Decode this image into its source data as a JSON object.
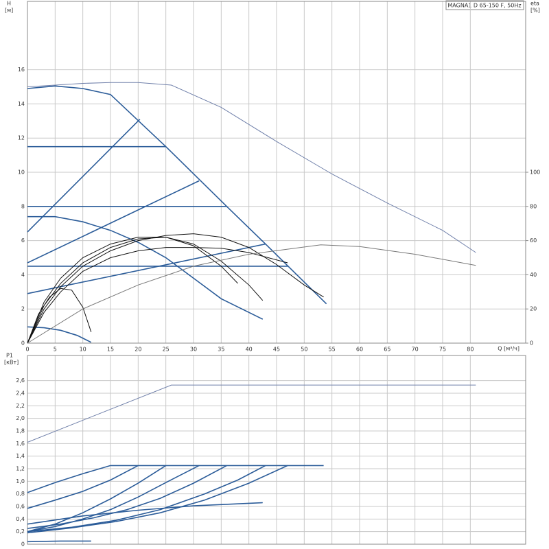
{
  "chart_data": [
    {
      "type": "line",
      "title": "MAGNA1 D 65-150 F, 50Hz",
      "y_label": "H",
      "y_unit": "[м]",
      "y2_label": "eta",
      "y2_unit": "[%]",
      "x_label": "Q [м³/ч]",
      "xlim": [
        0,
        90
      ],
      "xticks": [
        0,
        5,
        10,
        15,
        20,
        25,
        30,
        35,
        40,
        45,
        50,
        55,
        60,
        65,
        70,
        75,
        80
      ],
      "ylim": [
        0,
        20
      ],
      "yticks": [
        0,
        2,
        4,
        6,
        8,
        10,
        12,
        14,
        16
      ],
      "y2lim": [
        0,
        200
      ],
      "y2ticks": [
        0,
        20,
        40,
        60,
        80,
        100
      ],
      "grid": true,
      "series": [
        {
          "color": "#7080aa",
          "x": [
            0,
            5,
            10,
            15,
            20,
            26,
            35,
            45,
            55,
            65,
            75,
            81
          ],
          "values": [
            15,
            15.1,
            15.2,
            15.25,
            15.25,
            15.1,
            13.8,
            11.8,
            9.9,
            8.2,
            6.6,
            5.3
          ]
        },
        {
          "color": "#2b5c99",
          "x": [
            0,
            5,
            10,
            15,
            25,
            36,
            43,
            54
          ],
          "values": [
            14.9,
            15.05,
            14.9,
            14.55,
            11.5,
            8,
            5.8,
            2.3
          ]
        },
        {
          "color": "#2b5c99",
          "x": [
            0,
            25
          ],
          "values": [
            11.5,
            11.5
          ]
        },
        {
          "color": "#2b5c99",
          "x": [
            0,
            36
          ],
          "values": [
            8,
            8
          ]
        },
        {
          "color": "#2b5c99",
          "x": [
            0,
            47
          ],
          "values": [
            4.5,
            4.5
          ]
        },
        {
          "color": "#2b5c99",
          "x": [
            0,
            20.3
          ],
          "values": [
            6.5,
            13.1
          ]
        },
        {
          "color": "#2b5c99",
          "x": [
            0,
            31
          ],
          "values": [
            4.7,
            9.5
          ]
        },
        {
          "color": "#2b5c99",
          "x": [
            0,
            43
          ],
          "values": [
            2.9,
            5.8
          ]
        },
        {
          "color": "#2b5c99",
          "x": [
            0,
            5,
            10,
            15,
            20,
            25,
            30,
            35,
            42.5
          ],
          "values": [
            7.4,
            7.4,
            7.1,
            6.6,
            5.9,
            5,
            3.8,
            2.6,
            1.4
          ]
        },
        {
          "color": "#2b5c99",
          "x": [
            0,
            3,
            6,
            9,
            11.5
          ],
          "values": [
            0.95,
            0.9,
            0.75,
            0.45,
            0.05
          ]
        },
        {
          "color": "#111111",
          "axis": "y2",
          "x": [
            0,
            3,
            6,
            10,
            15,
            20,
            25,
            30,
            35,
            40,
            45,
            50,
            53.5
          ],
          "values": [
            0,
            20,
            33,
            45,
            54,
            60,
            63,
            64,
            62,
            56,
            46,
            34,
            27
          ]
        },
        {
          "color": "#111111",
          "axis": "y2",
          "x": [
            0,
            3,
            6,
            10,
            15,
            20,
            25,
            30,
            35,
            40,
            42.5
          ],
          "values": [
            0,
            22,
            35,
            47,
            56,
            61,
            62,
            58,
            48,
            34,
            25
          ]
        },
        {
          "color": "#111111",
          "axis": "y2",
          "x": [
            0,
            3,
            6,
            10,
            15,
            20,
            25,
            30,
            35,
            38
          ],
          "values": [
            0,
            24,
            38,
            50,
            58,
            62,
            62,
            57,
            45,
            35
          ]
        },
        {
          "color": "#111111",
          "axis": "y2",
          "x": [
            0,
            3,
            6,
            10,
            15,
            20,
            25,
            30,
            35,
            40,
            47
          ],
          "values": [
            0,
            18,
            30,
            42,
            50,
            54,
            56,
            56,
            55.5,
            53,
            47
          ]
        },
        {
          "color": "#111111",
          "axis": "y2",
          "x": [
            0,
            2,
            4,
            6,
            8,
            10,
            11.5
          ],
          "values": [
            0,
            17,
            27,
            32,
            31,
            21,
            6.5
          ]
        },
        {
          "color": "#777777",
          "axis": "y2",
          "x": [
            0,
            10,
            20,
            30,
            40,
            53,
            60,
            70,
            81
          ],
          "values": [
            0,
            20,
            34,
            45,
            52,
            57.5,
            56.5,
            52,
            45.5
          ]
        }
      ]
    },
    {
      "type": "line",
      "y_label": "P1",
      "y_unit": "[кВт]",
      "xlim": [
        0,
        90
      ],
      "xticks": [
        0,
        5,
        10,
        15,
        20,
        25,
        30,
        35,
        40,
        45,
        50,
        55,
        60,
        65,
        70,
        75,
        80
      ],
      "ylim": [
        0,
        3
      ],
      "yticks": [
        0,
        {
          "value": 0.2,
          "label": "0,2"
        },
        {
          "value": 0.4,
          "label": "0,4"
        },
        {
          "value": 0.6,
          "label": "0,6"
        },
        {
          "value": 0.8,
          "label": "0,8"
        },
        {
          "value": 1.0,
          "label": "1,0"
        },
        {
          "value": 1.2,
          "label": "1,2"
        },
        {
          "value": 1.4,
          "label": "1,4"
        },
        {
          "value": 1.6,
          "label": "1,6"
        },
        {
          "value": 1.8,
          "label": "1,8"
        },
        {
          "value": 2.0,
          "label": "2,0"
        },
        {
          "value": 2.2,
          "label": "2,2"
        },
        {
          "value": 2.4,
          "label": "2,4"
        },
        {
          "value": 2.6,
          "label": "2,6"
        }
      ],
      "grid": true,
      "series": [
        {
          "color": "#7080aa",
          "x": [
            0,
            26,
            81
          ],
          "values": [
            1.62,
            2.53,
            2.53
          ]
        },
        {
          "color": "#2b5c99",
          "x": [
            15,
            53.5
          ],
          "values": [
            1.25,
            1.25
          ]
        },
        {
          "color": "#2b5c99",
          "x": [
            0,
            5,
            10,
            15
          ],
          "values": [
            0.82,
            0.98,
            1.12,
            1.25
          ]
        },
        {
          "color": "#2b5c99",
          "x": [
            0,
            5,
            10,
            15,
            20
          ],
          "values": [
            0.57,
            0.7,
            0.84,
            1.02,
            1.25
          ]
        },
        {
          "color": "#2b5c99",
          "x": [
            0,
            5,
            10,
            15,
            20,
            25
          ],
          "values": [
            0.2,
            0.32,
            0.5,
            0.72,
            0.97,
            1.25
          ]
        },
        {
          "color": "#2b5c99",
          "x": [
            0,
            5,
            10,
            15,
            20,
            25,
            31
          ],
          "values": [
            0.2,
            0.28,
            0.4,
            0.55,
            0.75,
            0.98,
            1.25
          ]
        },
        {
          "color": "#2b5c99",
          "x": [
            0,
            6,
            12,
            18,
            24,
            30,
            36
          ],
          "values": [
            0.25,
            0.32,
            0.42,
            0.55,
            0.73,
            0.97,
            1.25
          ]
        },
        {
          "color": "#2b5c99",
          "x": [
            0,
            8,
            16,
            24,
            32,
            38,
            43
          ],
          "values": [
            0.2,
            0.27,
            0.38,
            0.55,
            0.8,
            1.02,
            1.25
          ]
        },
        {
          "color": "#2b5c99",
          "x": [
            0,
            8,
            16,
            24,
            32,
            40,
            47
          ],
          "values": [
            0.18,
            0.26,
            0.36,
            0.5,
            0.7,
            0.97,
            1.25
          ]
        },
        {
          "color": "#2b5c99",
          "x": [
            0,
            10,
            20,
            30,
            42.5
          ],
          "values": [
            0.32,
            0.45,
            0.54,
            0.61,
            0.66
          ]
        },
        {
          "color": "#2b5c99",
          "x": [
            0,
            6,
            11.5
          ],
          "values": [
            0.04,
            0.05,
            0.05
          ]
        }
      ]
    }
  ]
}
